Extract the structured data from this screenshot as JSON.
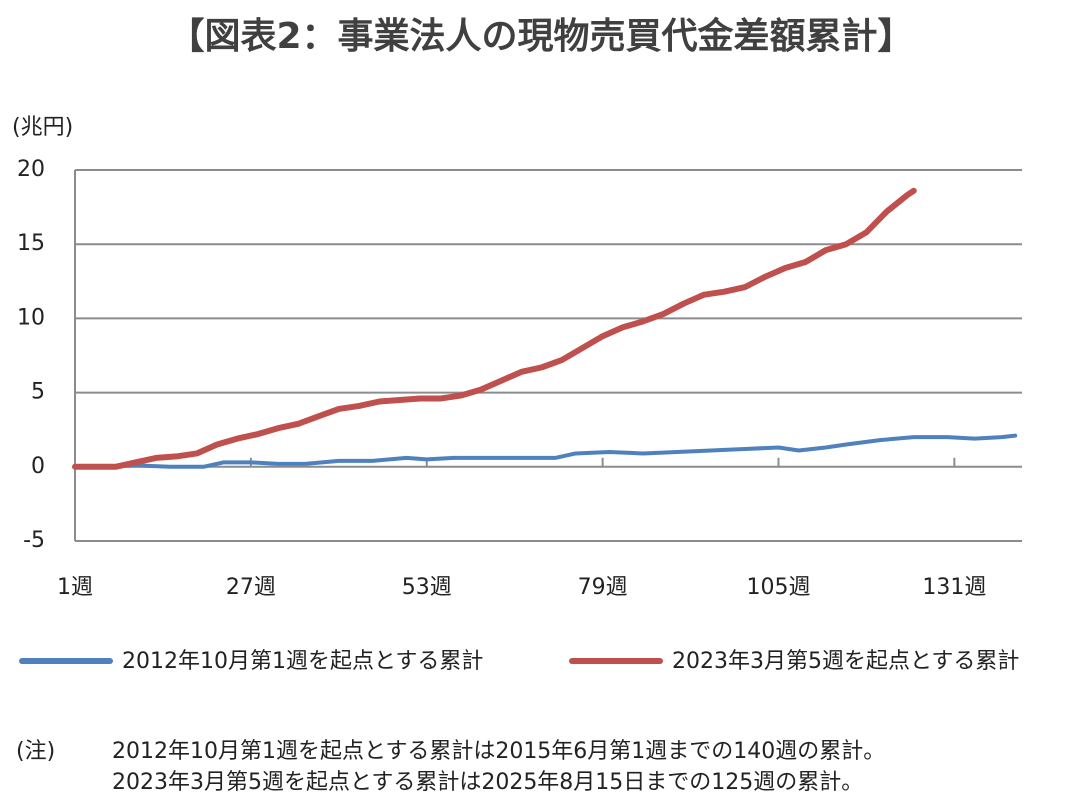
{
  "chart_data": {
    "type": "line",
    "title": "【図表2：事業法人の現物売買代金差額累計】",
    "y_label": "(兆円)",
    "xlim": [
      1,
      141
    ],
    "xticks": [
      {
        "value": 1,
        "label": "1週"
      },
      {
        "value": 27,
        "label": "27週"
      },
      {
        "value": 53,
        "label": "53週"
      },
      {
        "value": 79,
        "label": "79週"
      },
      {
        "value": 105,
        "label": "105週"
      },
      {
        "value": 131,
        "label": "131週"
      }
    ],
    "ylim": [
      -5,
      20
    ],
    "yticks": [
      -5,
      0,
      5,
      10,
      15,
      20
    ],
    "grid": true,
    "legend": "bottom",
    "series": [
      {
        "name": "2012年10月第1週を起点とする累計",
        "color": "#4f81bd",
        "x": [
          1,
          5,
          10,
          15,
          20,
          23,
          27,
          31,
          35,
          40,
          45,
          50,
          53,
          57,
          62,
          67,
          72,
          75,
          80,
          85,
          90,
          95,
          100,
          105,
          108,
          112,
          115,
          120,
          125,
          130,
          134,
          138,
          140
        ],
        "values": [
          0,
          0,
          0.1,
          0,
          0,
          0.3,
          0.3,
          0.2,
          0.2,
          0.4,
          0.4,
          0.6,
          0.5,
          0.6,
          0.6,
          0.6,
          0.6,
          0.9,
          1.0,
          0.9,
          1.0,
          1.1,
          1.2,
          1.3,
          1.1,
          1.3,
          1.5,
          1.8,
          2.0,
          2.0,
          1.9,
          2.0,
          2.1
        ]
      },
      {
        "name": "2023年3月第5週を起点とする累計",
        "color": "#c0504d",
        "x": [
          1,
          7,
          10,
          13,
          16,
          19,
          22,
          25,
          28,
          31,
          34,
          37,
          40,
          43,
          46,
          49,
          52,
          55,
          58,
          61,
          64,
          67,
          70,
          73,
          76,
          79,
          82,
          85,
          88,
          91,
          94,
          97,
          100,
          103,
          106,
          109,
          112,
          115,
          118,
          121,
          124,
          125
        ],
        "values": [
          0,
          0,
          0.3,
          0.6,
          0.7,
          0.9,
          1.5,
          1.9,
          2.2,
          2.6,
          2.9,
          3.4,
          3.9,
          4.1,
          4.4,
          4.5,
          4.6,
          4.6,
          4.8,
          5.2,
          5.8,
          6.4,
          6.7,
          7.2,
          8.0,
          8.8,
          9.4,
          9.8,
          10.3,
          11.0,
          11.6,
          11.8,
          12.1,
          12.8,
          13.4,
          13.8,
          14.6,
          15.0,
          15.8,
          17.2,
          18.3,
          18.6
        ]
      }
    ],
    "note_label": "(注)",
    "notes": [
      "2012年10月第1週を起点とする累計は2015年6月第1週までの140週の累計。",
      "2023年3月第5週を起点とする累計は2025年8月15日までの125週の累計。"
    ]
  }
}
